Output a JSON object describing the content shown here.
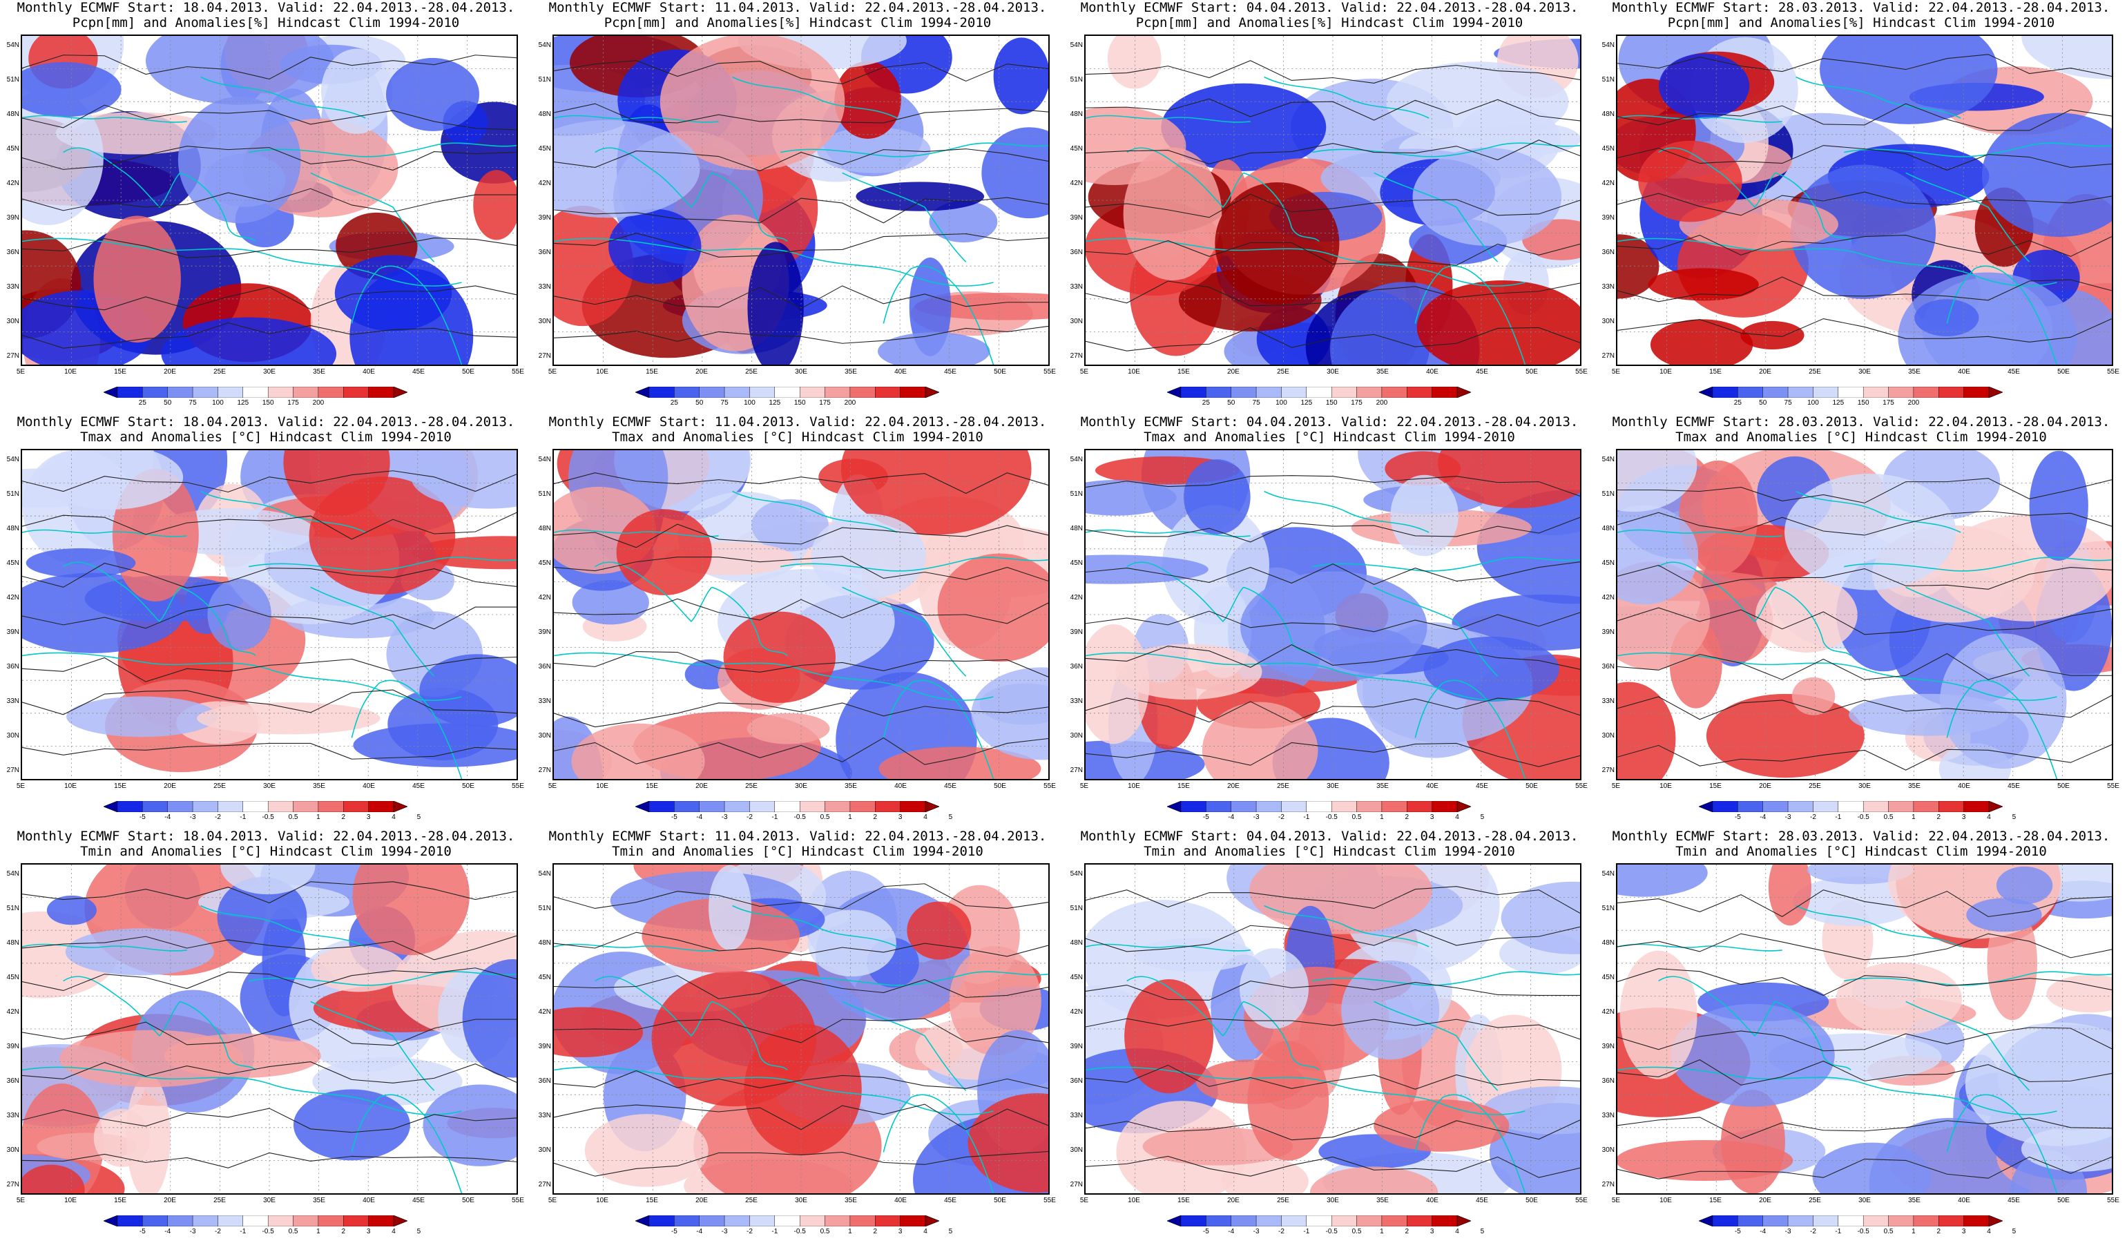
{
  "panels": [
    {
      "line1": "Monthly ECMWF Start: 18.04.2013. Valid: 22.04.2013.-28.04.2013.",
      "line2": "Pcpn[mm] and Anomalies[%] Hindcast Clim 1994-2010",
      "kind": "pcpn"
    },
    {
      "line1": "Monthly ECMWF Start: 11.04.2013. Valid: 22.04.2013.-28.04.2013.",
      "line2": "Pcpn[mm] and Anomalies[%] Hindcast Clim 1994-2010",
      "kind": "pcpn"
    },
    {
      "line1": "Monthly ECMWF Start: 04.04.2013. Valid: 22.04.2013.-28.04.2013.",
      "line2": "Pcpn[mm] and Anomalies[%] Hindcast Clim 1994-2010",
      "kind": "pcpn"
    },
    {
      "line1": "Monthly ECMWF Start: 28.03.2013. Valid: 22.04.2013.-28.04.2013.",
      "line2": "Pcpn[mm] and Anomalies[%] Hindcast Clim 1994-2010",
      "kind": "pcpn"
    },
    {
      "line1": "Monthly ECMWF Start: 18.04.2013. Valid: 22.04.2013.-28.04.2013.",
      "line2": "Tmax and Anomalies [°C] Hindcast Clim 1994-2010",
      "kind": "temp"
    },
    {
      "line1": "Monthly ECMWF Start: 11.04.2013. Valid: 22.04.2013.-28.04.2013.",
      "line2": "Tmax and Anomalies [°C] Hindcast Clim 1994-2010",
      "kind": "temp"
    },
    {
      "line1": "Monthly ECMWF Start: 04.04.2013. Valid: 22.04.2013.-28.04.2013.",
      "line2": "Tmax and Anomalies [°C] Hindcast Clim 1994-2010",
      "kind": "temp"
    },
    {
      "line1": "Monthly ECMWF Start: 28.03.2013. Valid: 22.04.2013.-28.04.2013.",
      "line2": "Tmax and Anomalies [°C] Hindcast Clim 1994-2010",
      "kind": "temp"
    },
    {
      "line1": "Monthly ECMWF Start: 18.04.2013. Valid: 22.04.2013.-28.04.2013.",
      "line2": "Tmin and Anomalies [°C] Hindcast Clim 1994-2010",
      "kind": "temp"
    },
    {
      "line1": "Monthly ECMWF Start: 11.04.2013. Valid: 22.04.2013.-28.04.2013.",
      "line2": "Tmin and Anomalies [°C] Hindcast Clim 1994-2010",
      "kind": "temp"
    },
    {
      "line1": "Monthly ECMWF Start: 04.04.2013. Valid: 22.04.2013.-28.04.2013.",
      "line2": "Tmin and Anomalies [°C] Hindcast Clim 1994-2010",
      "kind": "temp"
    },
    {
      "line1": "Monthly ECMWF Start: 28.03.2013. Valid: 22.04.2013.-28.04.2013.",
      "line2": "Tmin and Anomalies [°C] Hindcast Clim 1994-2010",
      "kind": "temp"
    }
  ],
  "lat_labels": [
    "54N",
    "51N",
    "48N",
    "45N",
    "42N",
    "39N",
    "36N",
    "33N",
    "30N",
    "27N"
  ],
  "lon_labels": [
    "5E",
    "10E",
    "15E",
    "20E",
    "25E",
    "30E",
    "35E",
    "40E",
    "45E",
    "50E",
    "55E"
  ],
  "colorbars": {
    "pcpn": {
      "ticks": [
        "25",
        "50",
        "75",
        "100",
        "125",
        "150",
        "175",
        "200"
      ],
      "colors": [
        "#0000a0",
        "#1428e6",
        "#4b64f0",
        "#7d91f5",
        "#aab9f8",
        "#d2dcfa",
        "#ffffff",
        "#fad2d2",
        "#f5a0a0",
        "#f06e6e",
        "#e63232",
        "#c80000",
        "#960000"
      ]
    },
    "temp": {
      "ticks": [
        "-5",
        "-4",
        "-3",
        "-2",
        "-1",
        "-0.5",
        "0.5",
        "1",
        "2",
        "3",
        "4",
        "5"
      ],
      "colors": [
        "#0000a0",
        "#1428e6",
        "#4b64f0",
        "#7d91f5",
        "#aab9f8",
        "#d2dcfa",
        "#ffffff",
        "#fad2d2",
        "#f5a0a0",
        "#f06e6e",
        "#e63232",
        "#c80000",
        "#960000"
      ]
    }
  }
}
